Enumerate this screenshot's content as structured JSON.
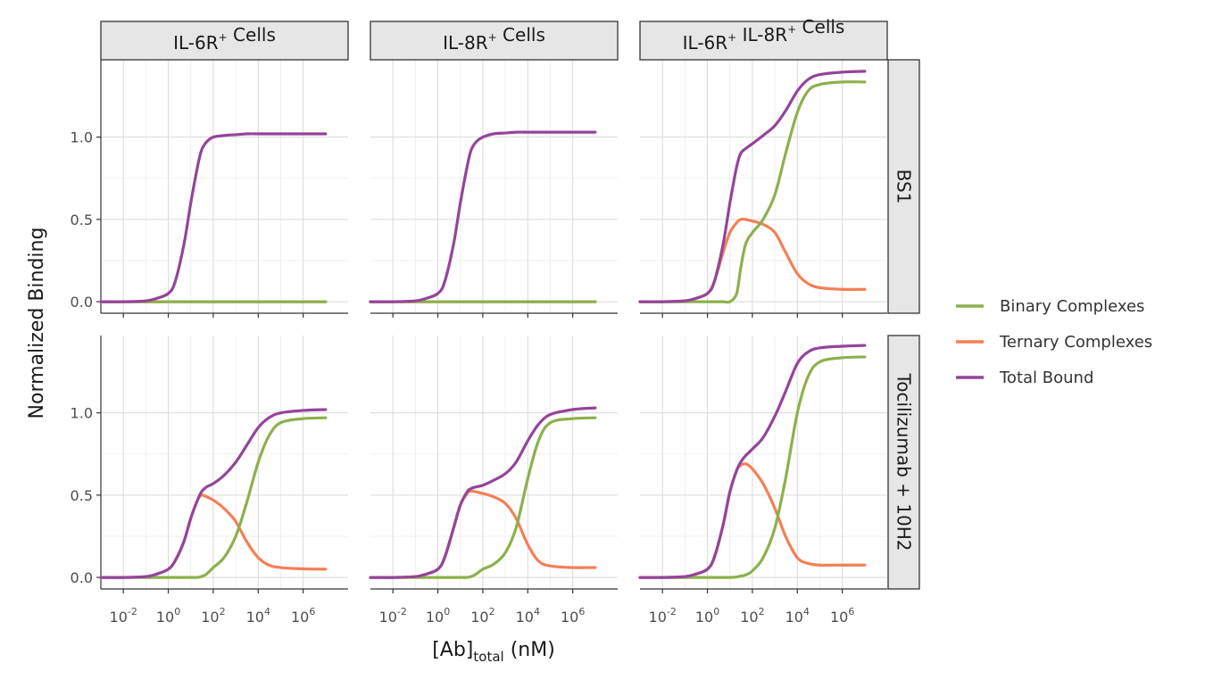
{
  "figure": {
    "ylabel": "Normalized Binding",
    "xlabel": {
      "main": "[Ab]",
      "sub": "total",
      "unit": " (nM)"
    }
  },
  "chart_data": {
    "type": "line",
    "facet_columns": [
      {
        "parts": [
          [
            "IL-6R",
            "+"
          ],
          [
            " Cells",
            ""
          ]
        ]
      },
      {
        "parts": [
          [
            "IL-8R",
            "+"
          ],
          [
            " Cells",
            ""
          ]
        ]
      },
      {
        "parts": [
          [
            "IL-6R",
            "+"
          ],
          [
            " IL-8R",
            "+"
          ],
          [
            " Cells",
            ""
          ]
        ]
      }
    ],
    "facet_rows": [
      "BS1",
      "Tocilizumab + 10H2"
    ],
    "x_scale": "log10",
    "xlim": [
      0.001,
      100000000
    ],
    "ylim": [
      -0.07,
      1.47
    ],
    "x_ticks": [
      {
        "base": "10",
        "exp": "-2",
        "value": 0.01
      },
      {
        "base": "10",
        "exp": "0",
        "value": 1
      },
      {
        "base": "10",
        "exp": "2",
        "value": 100
      },
      {
        "base": "10",
        "exp": "4",
        "value": 10000
      },
      {
        "base": "10",
        "exp": "6",
        "value": 1000000
      }
    ],
    "y_ticks": [
      {
        "label": "0.0",
        "value": 0
      },
      {
        "label": "0.5",
        "value": 0.5
      },
      {
        "label": "1.0",
        "value": 1.0
      }
    ],
    "grid": true,
    "legend_position": "right",
    "series_names": [
      "Binary Complexes",
      "Ternary Complexes",
      "Total Bound"
    ],
    "series_colors": [
      "#8db04c",
      "#f47f55",
      "#94449b"
    ],
    "x": [
      0.001,
      0.01,
      0.1,
      0.3,
      1,
      2,
      5,
      10,
      20,
      30,
      50,
      100,
      300,
      1000,
      3000,
      10000,
      30000,
      100000,
      1000000,
      10000000
    ],
    "panels": [
      {
        "row": 0,
        "col": 0,
        "series": [
          {
            "name": "Binary Complexes",
            "values": [
              0,
              0,
              0,
              0,
              0,
              0,
              0,
              0,
              0,
              0,
              0,
              0,
              0,
              0,
              0,
              0,
              0,
              0,
              0,
              0
            ]
          },
          {
            "name": "Ternary Complexes",
            "values": [
              0,
              0,
              0,
              0,
              0,
              0,
              0,
              0,
              0,
              0,
              0,
              0,
              0,
              0,
              0,
              0,
              0,
              0,
              0,
              0
            ]
          },
          {
            "name": "Total Bound",
            "values": [
              0,
              0,
              0.005,
              0.02,
              0.05,
              0.12,
              0.35,
              0.6,
              0.82,
              0.92,
              0.97,
              1.0,
              1.01,
              1.015,
              1.02,
              1.02,
              1.02,
              1.02,
              1.02,
              1.02
            ]
          }
        ]
      },
      {
        "row": 0,
        "col": 1,
        "series": [
          {
            "name": "Binary Complexes",
            "values": [
              0,
              0,
              0,
              0,
              0,
              0,
              0,
              0,
              0,
              0,
              0,
              0,
              0,
              0,
              0,
              0,
              0,
              0,
              0,
              0
            ]
          },
          {
            "name": "Ternary Complexes",
            "values": [
              0,
              0,
              0,
              0,
              0,
              0,
              0,
              0,
              0,
              0,
              0,
              0,
              0,
              0,
              0,
              0,
              0,
              0,
              0,
              0
            ]
          },
          {
            "name": "Total Bound",
            "values": [
              0,
              0,
              0.005,
              0.02,
              0.05,
              0.12,
              0.35,
              0.6,
              0.82,
              0.92,
              0.97,
              1.0,
              1.02,
              1.025,
              1.03,
              1.03,
              1.03,
              1.03,
              1.03,
              1.03
            ]
          }
        ]
      },
      {
        "row": 0,
        "col": 2,
        "series": [
          {
            "name": "Binary Complexes",
            "values": [
              0,
              0,
              0,
              0,
              0,
              0,
              0,
              0,
              0.05,
              0.2,
              0.35,
              0.42,
              0.5,
              0.65,
              0.9,
              1.15,
              1.28,
              1.32,
              1.335,
              1.335
            ]
          },
          {
            "name": "Ternary Complexes",
            "values": [
              0,
              0,
              0.005,
              0.02,
              0.05,
              0.12,
              0.3,
              0.42,
              0.48,
              0.5,
              0.5,
              0.49,
              0.47,
              0.42,
              0.3,
              0.17,
              0.11,
              0.085,
              0.075,
              0.075
            ]
          },
          {
            "name": "Total Bound",
            "values": [
              0,
              0,
              0.005,
              0.02,
              0.05,
              0.12,
              0.35,
              0.6,
              0.82,
              0.9,
              0.93,
              0.96,
              1.01,
              1.07,
              1.16,
              1.28,
              1.35,
              1.38,
              1.395,
              1.4
            ]
          }
        ]
      },
      {
        "row": 1,
        "col": 0,
        "series": [
          {
            "name": "Binary Complexes",
            "values": [
              0,
              0,
              0,
              0,
              0,
              0,
              0,
              0,
              0,
              0.005,
              0.02,
              0.06,
              0.12,
              0.25,
              0.45,
              0.7,
              0.86,
              0.94,
              0.965,
              0.97
            ]
          },
          {
            "name": "Ternary Complexes",
            "values": [
              0,
              0,
              0.005,
              0.02,
              0.05,
              0.1,
              0.22,
              0.36,
              0.47,
              0.5,
              0.49,
              0.47,
              0.42,
              0.34,
              0.22,
              0.12,
              0.075,
              0.06,
              0.052,
              0.05
            ]
          },
          {
            "name": "Total Bound",
            "values": [
              0,
              0,
              0.005,
              0.02,
              0.05,
              0.1,
              0.22,
              0.36,
              0.47,
              0.52,
              0.55,
              0.57,
              0.62,
              0.7,
              0.8,
              0.91,
              0.97,
              1.0,
              1.015,
              1.02
            ]
          }
        ]
      },
      {
        "row": 1,
        "col": 1,
        "series": [
          {
            "name": "Binary Complexes",
            "values": [
              0,
              0,
              0,
              0,
              0,
              0,
              0,
              0,
              0,
              0.005,
              0.02,
              0.05,
              0.08,
              0.15,
              0.3,
              0.6,
              0.83,
              0.94,
              0.965,
              0.97
            ]
          },
          {
            "name": "Ternary Complexes",
            "values": [
              0,
              0,
              0.005,
              0.02,
              0.05,
              0.12,
              0.3,
              0.44,
              0.51,
              0.525,
              0.52,
              0.51,
              0.49,
              0.45,
              0.36,
              0.2,
              0.1,
              0.07,
              0.06,
              0.06
            ]
          },
          {
            "name": "Total Bound",
            "values": [
              0,
              0,
              0.005,
              0.02,
              0.05,
              0.12,
              0.3,
              0.44,
              0.52,
              0.54,
              0.55,
              0.56,
              0.59,
              0.63,
              0.7,
              0.83,
              0.93,
              0.99,
              1.02,
              1.03
            ]
          }
        ]
      },
      {
        "row": 1,
        "col": 2,
        "series": [
          {
            "name": "Binary Complexes",
            "values": [
              0,
              0,
              0,
              0,
              0,
              0,
              0,
              0,
              0.003,
              0.008,
              0.015,
              0.04,
              0.12,
              0.3,
              0.6,
              1.0,
              1.22,
              1.31,
              1.335,
              1.34
            ]
          },
          {
            "name": "Ternary Complexes",
            "values": [
              0,
              0,
              0.005,
              0.02,
              0.05,
              0.12,
              0.32,
              0.52,
              0.65,
              0.68,
              0.69,
              0.66,
              0.57,
              0.42,
              0.25,
              0.12,
              0.085,
              0.075,
              0.075,
              0.075
            ]
          },
          {
            "name": "Total Bound",
            "values": [
              0,
              0,
              0.005,
              0.02,
              0.05,
              0.12,
              0.32,
              0.52,
              0.65,
              0.7,
              0.74,
              0.78,
              0.85,
              0.98,
              1.13,
              1.3,
              1.37,
              1.395,
              1.405,
              1.41
            ]
          }
        ]
      }
    ]
  }
}
